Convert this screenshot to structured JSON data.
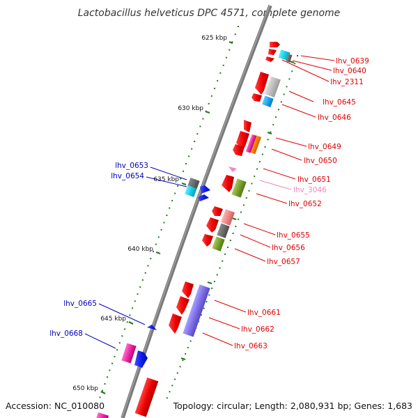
{
  "title": "Lactobacillus helveticus DPC 4571, complete genome",
  "accession": "Accession: NC_010080",
  "topology": "Topology: circular; Length: 2,080,931 bp; Genes: 1,683",
  "colors": {
    "backbone": "#808080",
    "tick": "#1f7a1f",
    "label_red": "#dd0000",
    "label_blue": "#0000bb",
    "label_pink": "#ee88bb"
  },
  "ticks": [
    {
      "label": "625 kbp"
    },
    {
      "label": "630 kbp"
    },
    {
      "label": "635 kbp"
    },
    {
      "label": "640 kbp"
    },
    {
      "label": "645 kbp"
    },
    {
      "label": "650 kbp"
    }
  ],
  "gene_labels": [
    {
      "text": "lhv_0639",
      "color": "red"
    },
    {
      "text": "lhv_0640",
      "color": "red"
    },
    {
      "text": "lhv_2311",
      "color": "red"
    },
    {
      "text": "lhv_0645",
      "color": "red"
    },
    {
      "text": "lhv_0646",
      "color": "red"
    },
    {
      "text": "lhv_0649",
      "color": "red"
    },
    {
      "text": "lhv_0650",
      "color": "red"
    },
    {
      "text": "lhv_0651",
      "color": "red"
    },
    {
      "text": "lhv_3046",
      "color": "pink"
    },
    {
      "text": "lhv_0652",
      "color": "red"
    },
    {
      "text": "lhv_0655",
      "color": "red"
    },
    {
      "text": "lhv_0656",
      "color": "red"
    },
    {
      "text": "lhv_0657",
      "color": "red"
    },
    {
      "text": "lhv_0661",
      "color": "red"
    },
    {
      "text": "lhv_0662",
      "color": "red"
    },
    {
      "text": "lhv_0663",
      "color": "red"
    },
    {
      "text": "lhv_0653",
      "color": "blue"
    },
    {
      "text": "lhv_0654",
      "color": "blue"
    },
    {
      "text": "lhv_0665",
      "color": "blue"
    },
    {
      "text": "lhv_0668",
      "color": "blue"
    }
  ]
}
